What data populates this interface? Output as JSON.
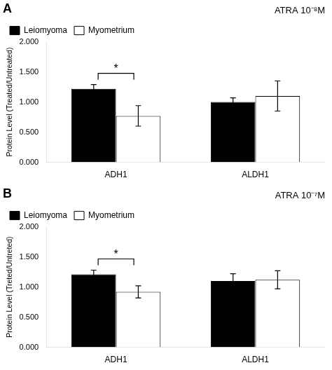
{
  "chart_data": [
    {
      "type": "bar",
      "title": "ATRA 10⁻⁸M",
      "panel_label": "A",
      "ylabel": "Protein Level (Treated/Untreated)",
      "categories": [
        "ADH1",
        "ALDH1"
      ],
      "series": [
        {
          "name": "Leiomyoma",
          "color": "#000000",
          "values": [
            1.22,
            1.0
          ],
          "errors": [
            0.07,
            0.07
          ]
        },
        {
          "name": "Myometrium",
          "color": "#ffffff",
          "values": [
            0.77,
            1.1
          ],
          "errors": [
            0.17,
            0.25
          ]
        }
      ],
      "ylim": [
        0.0,
        2.0
      ],
      "yticks": [
        {
          "value": 0.0,
          "label": "0.000"
        },
        {
          "value": 0.5,
          "label": "0.500"
        },
        {
          "value": 1.0,
          "label": "1.000"
        },
        {
          "value": 1.5,
          "label": "1.500"
        },
        {
          "value": 2.0,
          "label": "2.000"
        }
      ],
      "grid": false,
      "legend": "upper left",
      "annotations": [
        {
          "text": "*",
          "category": "ADH1"
        }
      ]
    },
    {
      "type": "bar",
      "title": "ATRA 10⁻⁷M",
      "panel_label": "B",
      "ylabel": "Protein Level (Treted/Untreted)",
      "categories": [
        "ADH1",
        "ALDH1"
      ],
      "series": [
        {
          "name": "Leiomyoma",
          "color": "#000000",
          "values": [
            1.21,
            1.1
          ],
          "errors": [
            0.07,
            0.12
          ]
        },
        {
          "name": "Myometrium",
          "color": "#ffffff",
          "values": [
            0.92,
            1.12
          ],
          "errors": [
            0.1,
            0.15
          ]
        }
      ],
      "ylim": [
        0.0,
        2.0
      ],
      "yticks": [
        {
          "value": 0.0,
          "label": "0.000"
        },
        {
          "value": 0.5,
          "label": "0.500"
        },
        {
          "value": 1.0,
          "label": "1.000"
        },
        {
          "value": 1.5,
          "label": "1.500"
        },
        {
          "value": 2.0,
          "label": "2.000"
        }
      ],
      "grid": false,
      "legend": "upper left",
      "annotations": [
        {
          "text": "*",
          "category": "ADH1"
        }
      ]
    }
  ]
}
